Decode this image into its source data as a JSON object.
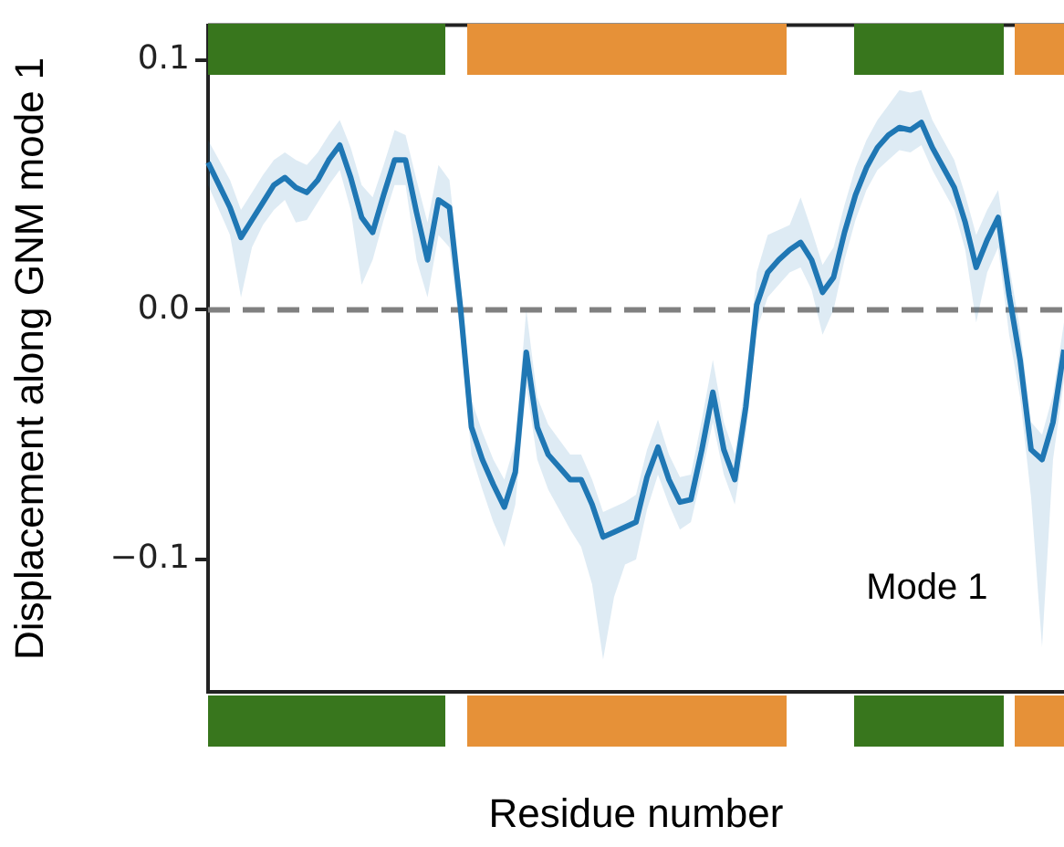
{
  "chart_data": {
    "type": "line",
    "xlabel": "Residue number",
    "ylabel": "Displacement along GNM mode 1",
    "categories": [
      null,
      null,
      null,
      null,
      null,
      null,
      null,
      null,
      null,
      null,
      null,
      null,
      null,
      null,
      null,
      null,
      null,
      null,
      null,
      null,
      null,
      null,
      null,
      null,
      null,
      null,
      null,
      null,
      null,
      null,
      null,
      null,
      null,
      null,
      null,
      null,
      null,
      null,
      null,
      null,
      null,
      null,
      null,
      null,
      null,
      null,
      null,
      null,
      null,
      null,
      null,
      null,
      null,
      null,
      null,
      null,
      null,
      null,
      null,
      null,
      null,
      null,
      null,
      null,
      null,
      null,
      null,
      null,
      null,
      null,
      null,
      null,
      null,
      null,
      null,
      null,
      null,
      null,
      null
    ],
    "series": [
      {
        "color": "#1f77b4",
        "values": [
          0.059,
          0.05,
          0.041,
          0.029,
          0.036,
          0.043,
          0.05,
          0.053,
          0.049,
          0.047,
          0.052,
          0.06,
          0.066,
          0.053,
          0.037,
          0.031,
          0.046,
          0.06,
          0.06,
          0.039,
          0.02,
          0.044,
          0.041,
          0.001,
          -0.047,
          -0.06,
          -0.07,
          -0.079,
          -0.065,
          -0.017,
          -0.047,
          -0.058,
          -0.063,
          -0.068,
          -0.068,
          -0.078,
          -0.091,
          -0.089,
          -0.087,
          -0.085,
          -0.067,
          -0.055,
          -0.068,
          -0.077,
          -0.076,
          -0.056,
          -0.033,
          -0.056,
          -0.068,
          -0.039,
          0.002,
          0.015,
          0.02,
          0.024,
          0.027,
          0.02,
          0.007,
          0.013,
          0.031,
          0.046,
          0.057,
          0.065,
          0.07,
          0.073,
          0.072,
          0.075,
          0.065,
          0.057,
          0.049,
          0.035,
          0.017,
          0.028,
          0.037,
          0.006,
          -0.02,
          -0.056,
          -0.06,
          -0.045,
          -0.016
        ],
        "lower": [
          0.05,
          0.04,
          0.03,
          0.005,
          0.025,
          0.034,
          0.04,
          0.044,
          0.035,
          0.036,
          0.043,
          0.05,
          0.056,
          0.04,
          0.01,
          0.02,
          0.036,
          0.05,
          0.05,
          0.02,
          0.005,
          0.03,
          0.025,
          -0.01,
          -0.058,
          -0.072,
          -0.085,
          -0.095,
          -0.078,
          -0.03,
          -0.06,
          -0.072,
          -0.08,
          -0.088,
          -0.095,
          -0.11,
          -0.14,
          -0.115,
          -0.102,
          -0.1,
          -0.08,
          -0.066,
          -0.078,
          -0.088,
          -0.085,
          -0.066,
          -0.045,
          -0.066,
          -0.078,
          -0.05,
          -0.008,
          0.005,
          0.01,
          0.015,
          0.017,
          0.008,
          -0.01,
          0.0,
          0.02,
          0.036,
          0.048,
          0.056,
          0.06,
          0.064,
          0.063,
          0.066,
          0.056,
          0.048,
          0.04,
          0.024,
          -0.005,
          0.015,
          0.025,
          -0.01,
          -0.035,
          -0.075,
          -0.135,
          -0.06,
          -0.028
        ],
        "upper": [
          0.068,
          0.06,
          0.052,
          0.04,
          0.047,
          0.054,
          0.06,
          0.063,
          0.06,
          0.058,
          0.063,
          0.07,
          0.076,
          0.065,
          0.05,
          0.045,
          0.058,
          0.072,
          0.07,
          0.052,
          0.035,
          0.058,
          0.052,
          0.012,
          -0.036,
          -0.049,
          -0.06,
          -0.068,
          -0.053,
          0.0,
          -0.035,
          -0.046,
          -0.052,
          -0.058,
          -0.058,
          -0.068,
          -0.081,
          -0.079,
          -0.077,
          -0.074,
          -0.056,
          -0.044,
          -0.058,
          -0.067,
          -0.066,
          -0.044,
          -0.02,
          -0.045,
          -0.058,
          -0.028,
          0.015,
          0.03,
          0.032,
          0.034,
          0.045,
          0.032,
          0.018,
          0.025,
          0.042,
          0.057,
          0.068,
          0.076,
          0.082,
          0.088,
          0.087,
          0.088,
          0.076,
          0.068,
          0.06,
          0.046,
          0.03,
          0.04,
          0.048,
          0.018,
          -0.008,
          -0.045,
          -0.05,
          -0.034,
          -0.005
        ]
      }
    ],
    "ylim": [
      -0.153,
      0.114
    ],
    "yticks": [
      {
        "value": -0.1,
        "label": "−0.1"
      },
      {
        "value": 0,
        "label": "0.0"
      },
      0.1
    ],
    "ref_lines": [
      {
        "axis": "y",
        "value": 0,
        "color": "#808080",
        "line_style": "dashed"
      }
    ],
    "annotations": [
      "Mode 1"
    ],
    "grid": false,
    "legend": false,
    "tick_labels": "y",
    "marker": "none",
    "line_style": "solid"
  }
}
